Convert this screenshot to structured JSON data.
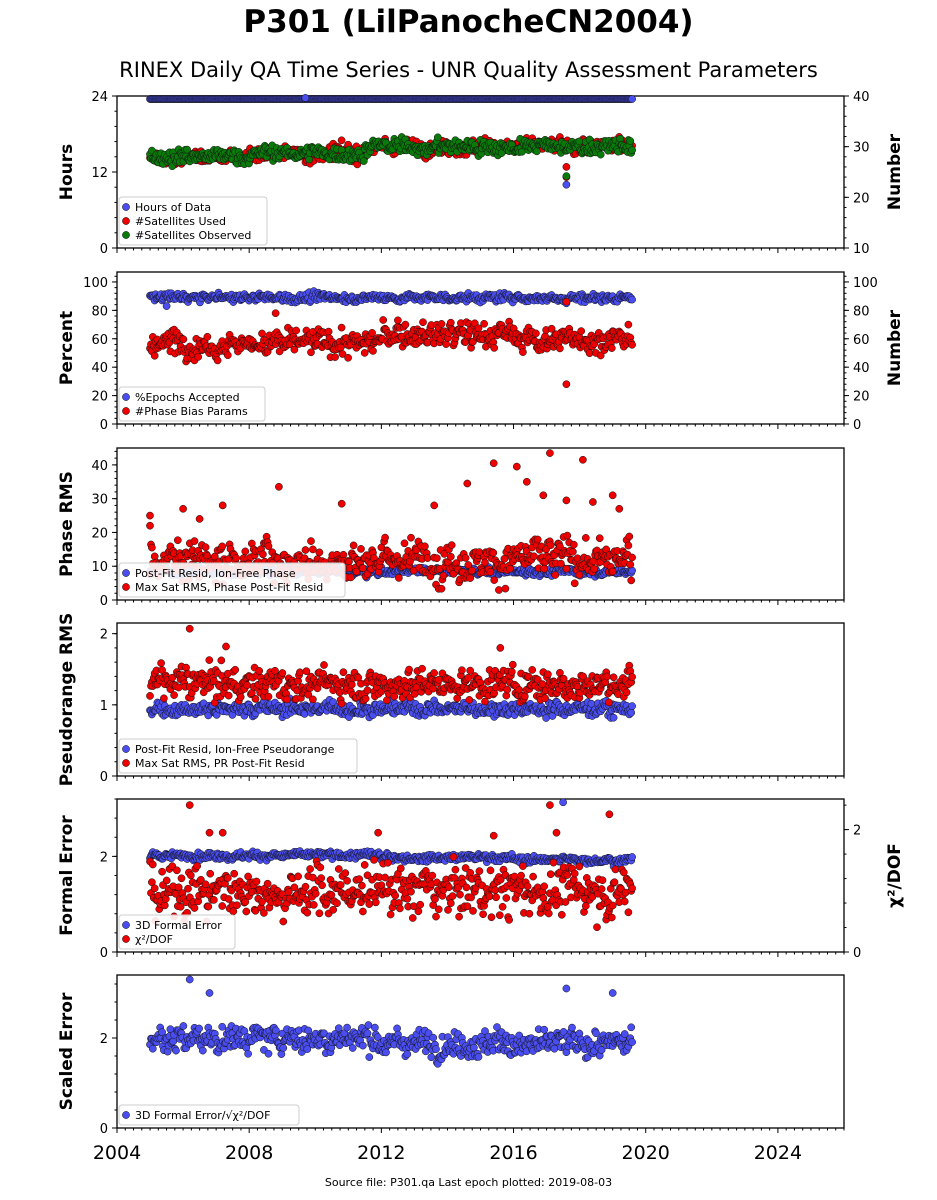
{
  "title": "P301 (LilPanocheCN2004)",
  "subtitle": "RINEX Daily QA Time Series - UNR Quality Assessment Parameters",
  "footer": "Source file: P301.qa Last epoch plotted: 2019-08-03",
  "colors": {
    "blue": "#4a4ef0",
    "red": "#ee0000",
    "green": "#0a7a0a",
    "dark_blue": "#0a0a50"
  },
  "chart_data": [
    {
      "type": "scatter",
      "ylabel": "Hours",
      "ylabel_right": "Number",
      "xlim": [
        2004,
        2026
      ],
      "ylim": [
        0,
        24
      ],
      "ylim_right": [
        10,
        40
      ],
      "yticks": [
        "0",
        "12",
        "24"
      ],
      "yticks_right": [
        "10",
        "20",
        "30",
        "40"
      ],
      "xticks": [
        "2004",
        "2008",
        "2012",
        "2016",
        "2020",
        "2024"
      ],
      "x_range": [
        2005.0,
        2019.59
      ],
      "series": [
        {
          "name": "Hours of Data",
          "axis": "left",
          "color": "#4a4ef0",
          "baseline": 24.0,
          "noise": 0.0,
          "segments": [],
          "outliers": [
            [
              2009.7,
              23.7
            ],
            [
              2017.6,
              10.0
            ]
          ]
        },
        {
          "name": "#Satellites Used",
          "axis": "right",
          "color": "#ee0000",
          "baseline": 29.0,
          "noise": 1.0,
          "segments": [
            [
              2005,
              2008,
              28.0
            ],
            [
              2008,
              2011.5,
              28.7
            ],
            [
              2011.5,
              2019.6,
              30.0
            ]
          ],
          "outliers": [
            [
              2017.6,
              26.0
            ],
            [
              2017.6,
              24.0
            ]
          ]
        },
        {
          "name": "#Satellites Observed",
          "axis": "right",
          "color": "#0a7a0a",
          "baseline": 29.0,
          "noise": 1.0,
          "segments": [
            [
              2005,
              2008,
              28.0
            ],
            [
              2008,
              2011.5,
              28.7
            ],
            [
              2011.5,
              2019.6,
              30.0
            ]
          ],
          "outliers": [
            [
              2017.6,
              24.2
            ]
          ]
        }
      ]
    },
    {
      "type": "scatter",
      "ylabel": "Percent",
      "ylabel_right": "Number",
      "xlim": [
        2004,
        2026
      ],
      "ylim": [
        0,
        107
      ],
      "ylim_right": [
        0,
        107
      ],
      "yticks": [
        "0",
        "20",
        "40",
        "60",
        "80",
        "100"
      ],
      "yticks_right": [
        "0",
        "20",
        "40",
        "60",
        "80",
        "100"
      ],
      "xticks": [
        "2004",
        "2008",
        "2012",
        "2016",
        "2020",
        "2024"
      ],
      "x_range": [
        2005.0,
        2019.59
      ],
      "series": [
        {
          "name": "%Epochs Accepted",
          "axis": "left",
          "color": "#4a4ef0",
          "baseline": 89.0,
          "noise": 2.0,
          "segments": [],
          "outliers": [
            [
              2005.5,
              83.0
            ],
            [
              2017.6,
              85.0
            ]
          ]
        },
        {
          "name": "#Phase Bias Params",
          "axis": "left",
          "color": "#ee0000",
          "baseline": 58.0,
          "noise": 6.0,
          "segments": [
            [
              2005,
              2012,
              57.0
            ],
            [
              2012,
              2016,
              63.0
            ],
            [
              2016,
              2019.6,
              60.0
            ]
          ],
          "outliers": [
            [
              2008.8,
              78.0
            ],
            [
              2017.6,
              28.0
            ],
            [
              2017.6,
              86.0
            ],
            [
              2012.5,
              73.0
            ]
          ]
        }
      ]
    },
    {
      "type": "scatter",
      "ylabel": "Phase RMS",
      "xlim": [
        2004,
        2026
      ],
      "ylim": [
        0,
        45
      ],
      "yticks": [
        "0",
        "10",
        "20",
        "30",
        "40"
      ],
      "xticks": [
        "2004",
        "2008",
        "2012",
        "2016",
        "2020",
        "2024"
      ],
      "x_range": [
        2005.0,
        2019.59
      ],
      "series": [
        {
          "name": "Post-Fit Resid, Ion-Free Phase",
          "axis": "left",
          "color": "#4a4ef0",
          "baseline": 8.5,
          "noise": 0.8,
          "segments": [],
          "outliers": []
        },
        {
          "name": "Max Sat RMS, Phase Post-Fit Resid",
          "axis": "left",
          "color": "#ee0000",
          "baseline": 12.0,
          "noise": 4.0,
          "segments": [],
          "outliers": [
            [
              2005,
              25.0
            ],
            [
              2005,
              22.0
            ],
            [
              2006,
              27.0
            ],
            [
              2006.5,
              24.0
            ],
            [
              2007.2,
              28.0
            ],
            [
              2008.9,
              33.5
            ],
            [
              2010.8,
              28.5
            ],
            [
              2013.6,
              28.0
            ],
            [
              2014.6,
              34.5
            ],
            [
              2015.4,
              40.5
            ],
            [
              2016.1,
              39.5
            ],
            [
              2016.4,
              35.0
            ],
            [
              2016.9,
              31.0
            ],
            [
              2017.1,
              43.5
            ],
            [
              2017.6,
              29.5
            ],
            [
              2018.1,
              41.5
            ],
            [
              2018.4,
              29.0
            ],
            [
              2019.0,
              31.0
            ],
            [
              2019.2,
              27.0
            ]
          ]
        }
      ]
    },
    {
      "type": "scatter",
      "ylabel": "Pseudorange RMS",
      "xlim": [
        2004,
        2026
      ],
      "ylim": [
        0,
        2.15
      ],
      "yticks": [
        "0",
        "1",
        "2"
      ],
      "xticks": [
        "2004",
        "2008",
        "2012",
        "2016",
        "2020",
        "2024"
      ],
      "x_range": [
        2005.0,
        2019.59
      ],
      "series": [
        {
          "name": "Post-Fit Resid, Ion-Free Pseudorange",
          "axis": "left",
          "color": "#4a4ef0",
          "baseline": 0.95,
          "noise": 0.07,
          "segments": [],
          "outliers": []
        },
        {
          "name": "Max Sat RMS, PR Post-Fit Resid",
          "axis": "left",
          "color": "#ee0000",
          "baseline": 1.3,
          "noise": 0.15,
          "segments": [],
          "outliers": [
            [
              2006.2,
              2.07
            ],
            [
              2007.3,
              1.82
            ],
            [
              2015.6,
              1.8
            ]
          ]
        }
      ]
    },
    {
      "type": "scatter",
      "ylabel": "Formal Error",
      "ylabel_right": "χ²/DOF",
      "xlim": [
        2004,
        2026
      ],
      "ylim": [
        0,
        3.2
      ],
      "ylim_right": [
        0,
        2.5
      ],
      "yticks": [
        "0",
        "2"
      ],
      "yticks_right": [
        "0",
        "2"
      ],
      "xticks": [
        "2004",
        "2008",
        "2012",
        "2016",
        "2020",
        "2024"
      ],
      "x_range": [
        2005.0,
        2019.59
      ],
      "series": [
        {
          "name": "3D Formal Error",
          "axis": "left",
          "color": "#4a4ef0",
          "baseline": 2.0,
          "noise": 0.05,
          "segments": [
            [
              2005,
              2012,
              2.02
            ],
            [
              2012,
              2016,
              1.98
            ],
            [
              2016,
              2019.6,
              1.93
            ]
          ],
          "outliers": [
            [
              2017.5,
              3.13
            ]
          ]
        },
        {
          "name": "χ²/DOF",
          "axis": "right",
          "color": "#ee0000",
          "baseline": 1.0,
          "noise": 0.28,
          "segments": [],
          "outliers": [
            [
              2006.2,
              2.4
            ],
            [
              2006.8,
              1.95
            ],
            [
              2007.2,
              1.95
            ],
            [
              2011.9,
              1.95
            ],
            [
              2015.4,
              1.9
            ],
            [
              2017.1,
              2.4
            ],
            [
              2017.3,
              1.95
            ],
            [
              2018.9,
              2.25
            ]
          ]
        }
      ]
    },
    {
      "type": "scatter",
      "ylabel": "Scaled Error",
      "xlim": [
        2004,
        2026
      ],
      "ylim": [
        0,
        3.4
      ],
      "yticks": [
        "0",
        "2"
      ],
      "xticks": [
        "2004",
        "2008",
        "2012",
        "2016",
        "2020",
        "2024"
      ],
      "x_range": [
        2005.0,
        2019.59
      ],
      "series": [
        {
          "name": "3D Formal Error/√χ²/DOF",
          "axis": "left",
          "color": "#4a4ef0",
          "baseline": 1.95,
          "noise": 0.2,
          "segments": [
            [
              2005,
              2012,
              2.0
            ],
            [
              2012,
              2016,
              1.9
            ],
            [
              2016,
              2019.6,
              1.85
            ]
          ],
          "outliers": [
            [
              2006.2,
              3.3
            ],
            [
              2006.8,
              3.0
            ],
            [
              2017.6,
              3.1
            ],
            [
              2019.0,
              3.0
            ]
          ]
        }
      ]
    }
  ]
}
